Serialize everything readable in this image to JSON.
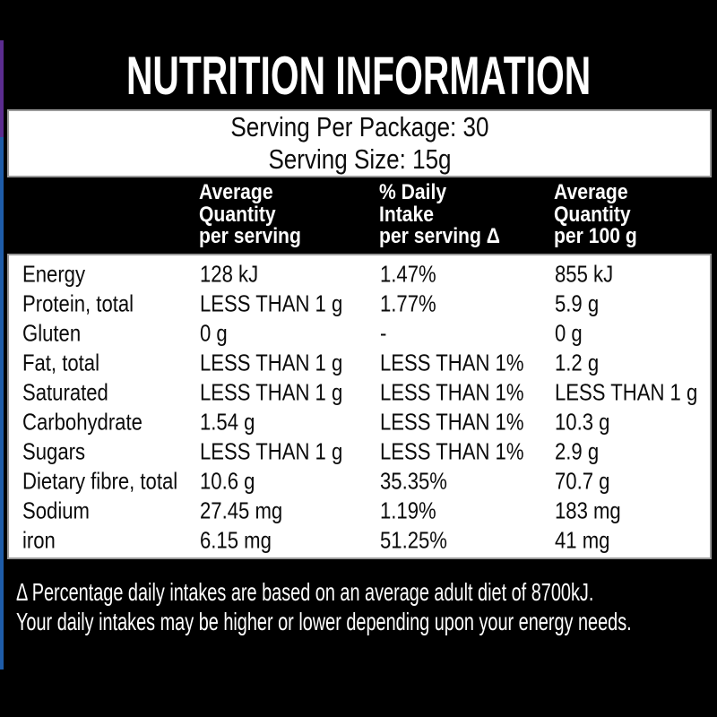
{
  "label": {
    "title": "NUTRITION INFORMATION",
    "serving_per_package": "Serving Per Package: 30",
    "serving_size": "Serving Size: 15g",
    "columns": [
      {
        "lines": [
          "Average",
          "Quantity",
          "per serving"
        ]
      },
      {
        "lines": [
          "% Daily",
          "Intake",
          "per serving Δ"
        ]
      },
      {
        "lines": [
          "Average",
          "Quantity",
          "per 100 g"
        ]
      }
    ],
    "rows": [
      {
        "name": "Energy",
        "per_serving": "128 kJ",
        "daily_intake": "1.47%",
        "per_100g": "855 kJ"
      },
      {
        "name": "Protein, total",
        "per_serving": "LESS THAN 1 g",
        "daily_intake": "1.77%",
        "per_100g": "5.9 g"
      },
      {
        "name": "Gluten",
        "per_serving": "0 g",
        "daily_intake": "-",
        "per_100g": "0 g"
      },
      {
        "name": "Fat, total",
        "per_serving": "LESS THAN 1 g",
        "daily_intake": "LESS THAN 1%",
        "per_100g": "1.2 g"
      },
      {
        "name": "Saturated",
        "per_serving": "LESS THAN 1 g",
        "daily_intake": "LESS THAN 1%",
        "per_100g": "LESS THAN 1 g"
      },
      {
        "name": "Carbohydrate",
        "per_serving": "1.54 g",
        "daily_intake": "LESS THAN 1%",
        "per_100g": "10.3 g"
      },
      {
        "name": "Sugars",
        "per_serving": "LESS THAN 1 g",
        "daily_intake": "LESS THAN 1%",
        "per_100g": "2.9 g"
      },
      {
        "name": "Dietary fibre, total",
        "per_serving": "10.6 g",
        "daily_intake": "35.35%",
        "per_100g": "70.7 g"
      },
      {
        "name": "Sodium",
        "per_serving": "27.45 mg",
        "daily_intake": "1.19%",
        "per_100g": "183 mg"
      },
      {
        "name": "iron",
        "per_serving": "6.15 mg",
        "daily_intake": "51.25%",
        "per_100g": "41 mg"
      }
    ],
    "footnote_line1": "Δ Percentage daily intakes are based on an average adult diet of 8700kJ.",
    "footnote_line2": "Your daily intakes may be higher or lower depending upon your energy needs.",
    "colors": {
      "background": "#000000",
      "panel": "#FFFFFF",
      "panel_border": "#9A9A9A",
      "purple_strip": "#5B2C8F",
      "blue_strip": "#1E5CA8"
    }
  }
}
